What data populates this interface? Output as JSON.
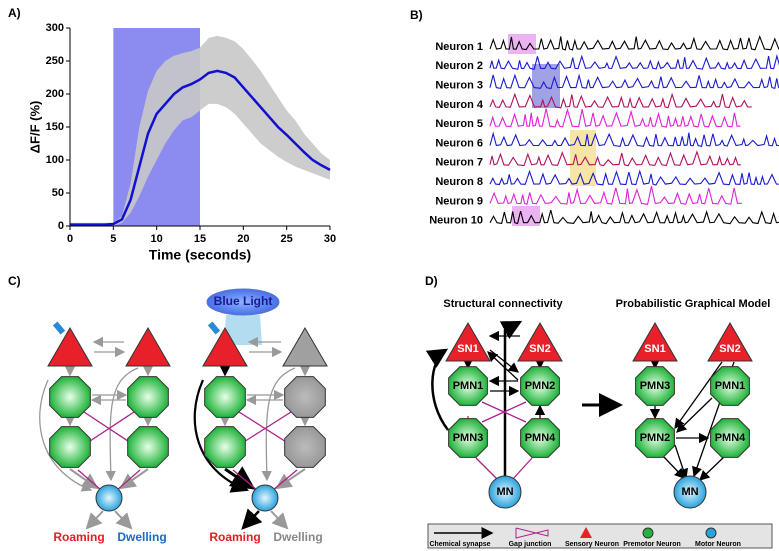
{
  "chart_data": {
    "type": "line",
    "panel_label": "A)",
    "xlabel": "Time (seconds)",
    "ylabel": "ΔF/F (%)",
    "x": [
      0,
      1,
      2,
      3,
      4,
      5,
      6,
      7,
      8,
      9,
      10,
      11,
      12,
      13,
      14,
      15,
      16,
      17,
      18,
      19,
      20,
      21,
      22,
      23,
      24,
      25,
      26,
      27,
      28,
      29,
      30
    ],
    "values": [
      2,
      2,
      2,
      2,
      2,
      3,
      10,
      40,
      90,
      140,
      170,
      185,
      200,
      210,
      215,
      222,
      232,
      235,
      232,
      225,
      210,
      195,
      180,
      165,
      150,
      138,
      125,
      112,
      100,
      92,
      85
    ],
    "band": {
      "upper": [
        5,
        5,
        5,
        5,
        5,
        5,
        15,
        65,
        150,
        205,
        235,
        250,
        258,
        262,
        265,
        270,
        285,
        288,
        285,
        280,
        268,
        252,
        235,
        215,
        195,
        175,
        160,
        140,
        125,
        110,
        100
      ],
      "lower": [
        0,
        0,
        0,
        0,
        0,
        0,
        5,
        20,
        45,
        75,
        100,
        125,
        145,
        160,
        165,
        175,
        185,
        185,
        180,
        170,
        155,
        140,
        125,
        115,
        105,
        97,
        90,
        85,
        80,
        75,
        70
      ]
    },
    "stimulus": [
      5,
      15
    ],
    "stimulus_color": "#8c8cf0",
    "color": "#1010d0",
    "band_color": "#c8c8c8",
    "xlim": [
      0,
      30
    ],
    "ylim": [
      0,
      300
    ],
    "xticks": [
      0,
      5,
      10,
      15,
      20,
      25,
      30
    ],
    "yticks": [
      0,
      50,
      100,
      150,
      200,
      250,
      300
    ]
  },
  "panel_b": {
    "panel_label": "B)",
    "series": [
      {
        "name": "Neuron 1",
        "color": "#000000"
      },
      {
        "name": "Neuron 2",
        "color": "#1a1ad0"
      },
      {
        "name": "Neuron 3",
        "color": "#1a1ad0"
      },
      {
        "name": "Neuron 4",
        "color": "#b0105a"
      },
      {
        "name": "Neuron 5",
        "color": "#e020d8"
      },
      {
        "name": "Neuron 6",
        "color": "#1a1ad0"
      },
      {
        "name": "Neuron 7",
        "color": "#b0105a"
      },
      {
        "name": "Neuron 8",
        "color": "#1a1ad0"
      },
      {
        "name": "Neuron 9",
        "color": "#e020d8"
      },
      {
        "name": "Neuron 10",
        "color": "#000000"
      }
    ]
  },
  "panel_c": {
    "panel_label": "C)",
    "light": "Blue Light",
    "left": {
      "roaming": "Roaming",
      "dwelling": "Dwelling"
    },
    "right": {
      "roaming": "Roaming",
      "dwelling": "Dwelling"
    }
  },
  "panel_d": {
    "panel_label": "D)",
    "structural": {
      "title": "Structural connectivity",
      "nodes": [
        "SN1",
        "SN2",
        "PMN1",
        "PMN2",
        "PMN3",
        "PMN4",
        "MN"
      ]
    },
    "model": {
      "title": "Probabilistic Graphical Model",
      "nodes": [
        "SN1",
        "SN2",
        "PMN3",
        "PMN1",
        "PMN2",
        "PMN4",
        "MN"
      ]
    }
  },
  "legend": {
    "items": [
      "Chemical synapse",
      "Gap junction",
      "Sensory Neuron",
      "Premotor Neuron",
      "Motor Neuron"
    ]
  }
}
